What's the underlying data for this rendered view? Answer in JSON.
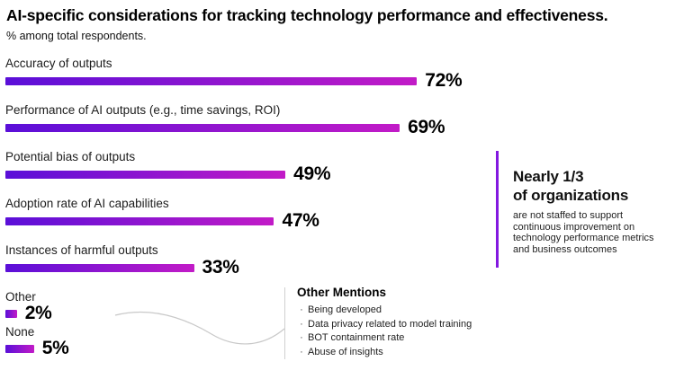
{
  "header": {
    "title": "AI-specific considerations for tracking technology performance and effectiveness.",
    "subtitle": "% among total respondents."
  },
  "chart_data": {
    "type": "bar",
    "orientation": "horizontal",
    "title": "AI-specific considerations for tracking technology performance and effectiveness.",
    "subtitle": "% among total respondents.",
    "unit": "%",
    "value_range": [
      0,
      100
    ],
    "grid": false,
    "legend": false,
    "categories": [
      "Accuracy of outputs",
      "Performance of AI outputs (e.g., time savings, ROI)",
      "Potential bias of outputs",
      "Adoption rate of AI capabilities",
      "Instances of harmful outputs",
      "Other",
      "None"
    ],
    "values": [
      72,
      69,
      49,
      47,
      33,
      2,
      5
    ],
    "value_labels": [
      "72%",
      "69%",
      "49%",
      "47%",
      "33%",
      "2%",
      "5%"
    ],
    "bar_gradient": [
      "#5a0fd8",
      "#c21bc7"
    ]
  },
  "other_mentions": {
    "title": "Other Mentions",
    "items": [
      "Being developed",
      "Data privacy related to model training",
      "BOT containment rate",
      "Abuse of insights"
    ]
  },
  "callout": {
    "heading_line1": "Nearly 1/3",
    "heading_line2": "of organizations",
    "body": "are not staffed to support continuous improvement on technology performance metrics and business outcomes",
    "accent_color": "#8318e0"
  },
  "colors": {
    "connector_line": "#c9c9c9",
    "divider": "#cfcfcf",
    "text": "#000000"
  }
}
